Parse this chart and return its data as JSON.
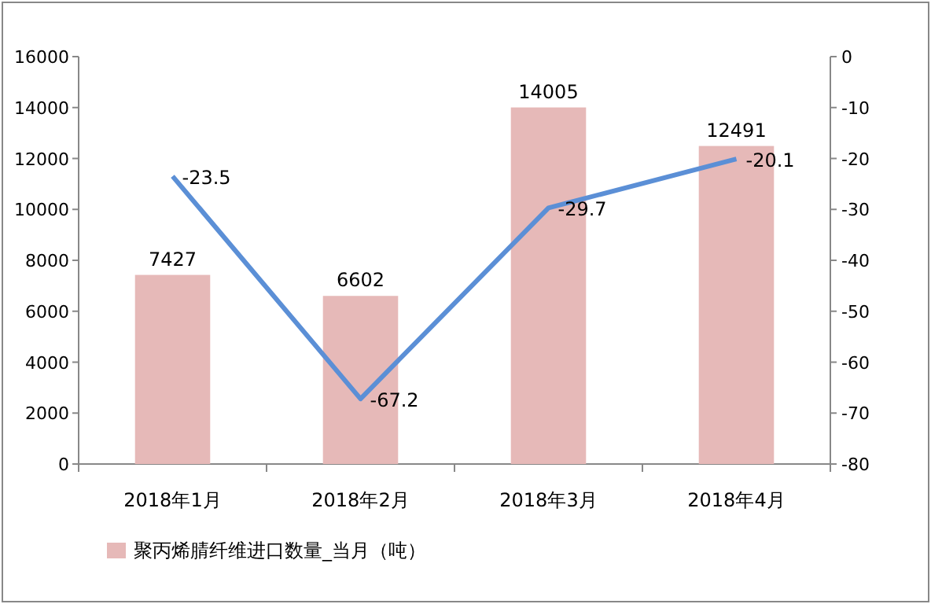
{
  "chart_data": {
    "type": "bar",
    "categories": [
      "2018年1月",
      "2018年2月",
      "2018年3月",
      "2018年4月"
    ],
    "series": [
      {
        "name": "聚丙烯腈纤维进口数量_当月（吨）",
        "color": "#e6b9b8",
        "values": [
          7427,
          6602,
          14005,
          12491
        ]
      },
      {
        "type": "line",
        "axis": "y2",
        "color": "#5b8fd6",
        "values": [
          -23.5,
          -67.2,
          -29.7,
          -20.1
        ]
      }
    ],
    "ylim": [
      0,
      16000
    ],
    "yticks": [
      0,
      2000,
      4000,
      6000,
      8000,
      10000,
      12000,
      14000,
      16000
    ],
    "y2lim": [
      -80,
      0
    ],
    "y2ticks": [
      -80,
      -70,
      -60,
      -50,
      -40,
      -30,
      -20,
      -10,
      0
    ],
    "data_labels": true,
    "legend": "bottom",
    "grid": false,
    "marker": "none",
    "line_style": "solid"
  }
}
